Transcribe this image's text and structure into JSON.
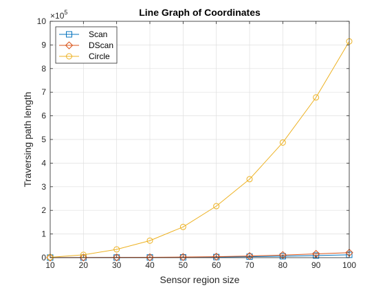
{
  "chart_data": {
    "type": "line",
    "title": "Line Graph of Coordinates",
    "xlabel": "Sensor region size",
    "ylabel": "Traversing path length",
    "y_multiplier_base": "10",
    "y_multiplier_exponent": "5",
    "xlim": [
      10,
      100
    ],
    "ylim": [
      0,
      1000000
    ],
    "x": [
      10,
      20,
      30,
      40,
      50,
      60,
      70,
      80,
      90,
      100
    ],
    "x_ticks": [
      "10",
      "20",
      "30",
      "40",
      "50",
      "60",
      "70",
      "80",
      "90",
      "100"
    ],
    "y_ticks": [
      "0",
      "1",
      "2",
      "3",
      "4",
      "5",
      "6",
      "7",
      "8",
      "9",
      "10"
    ],
    "y_tick_values": [
      0,
      100000,
      200000,
      300000,
      400000,
      500000,
      600000,
      700000,
      800000,
      900000,
      1000000
    ],
    "grid": true,
    "legend_position": "top-left",
    "series": [
      {
        "name": "Scan",
        "marker": "square",
        "color": "#0072BD",
        "values": [
          400,
          500,
          700,
          1000,
          1500,
          2500,
          4000,
          6000,
          9000,
          12000
        ]
      },
      {
        "name": "DScan",
        "marker": "diamond",
        "color": "#D95319",
        "values": [
          500,
          700,
          1000,
          1500,
          2500,
          4000,
          7000,
          11000,
          16000,
          21000
        ]
      },
      {
        "name": "Circle",
        "marker": "circle",
        "color": "#EDB120",
        "values": [
          1500,
          12000,
          35000,
          72000,
          130000,
          218000,
          332000,
          487000,
          678000,
          915000
        ]
      }
    ]
  }
}
